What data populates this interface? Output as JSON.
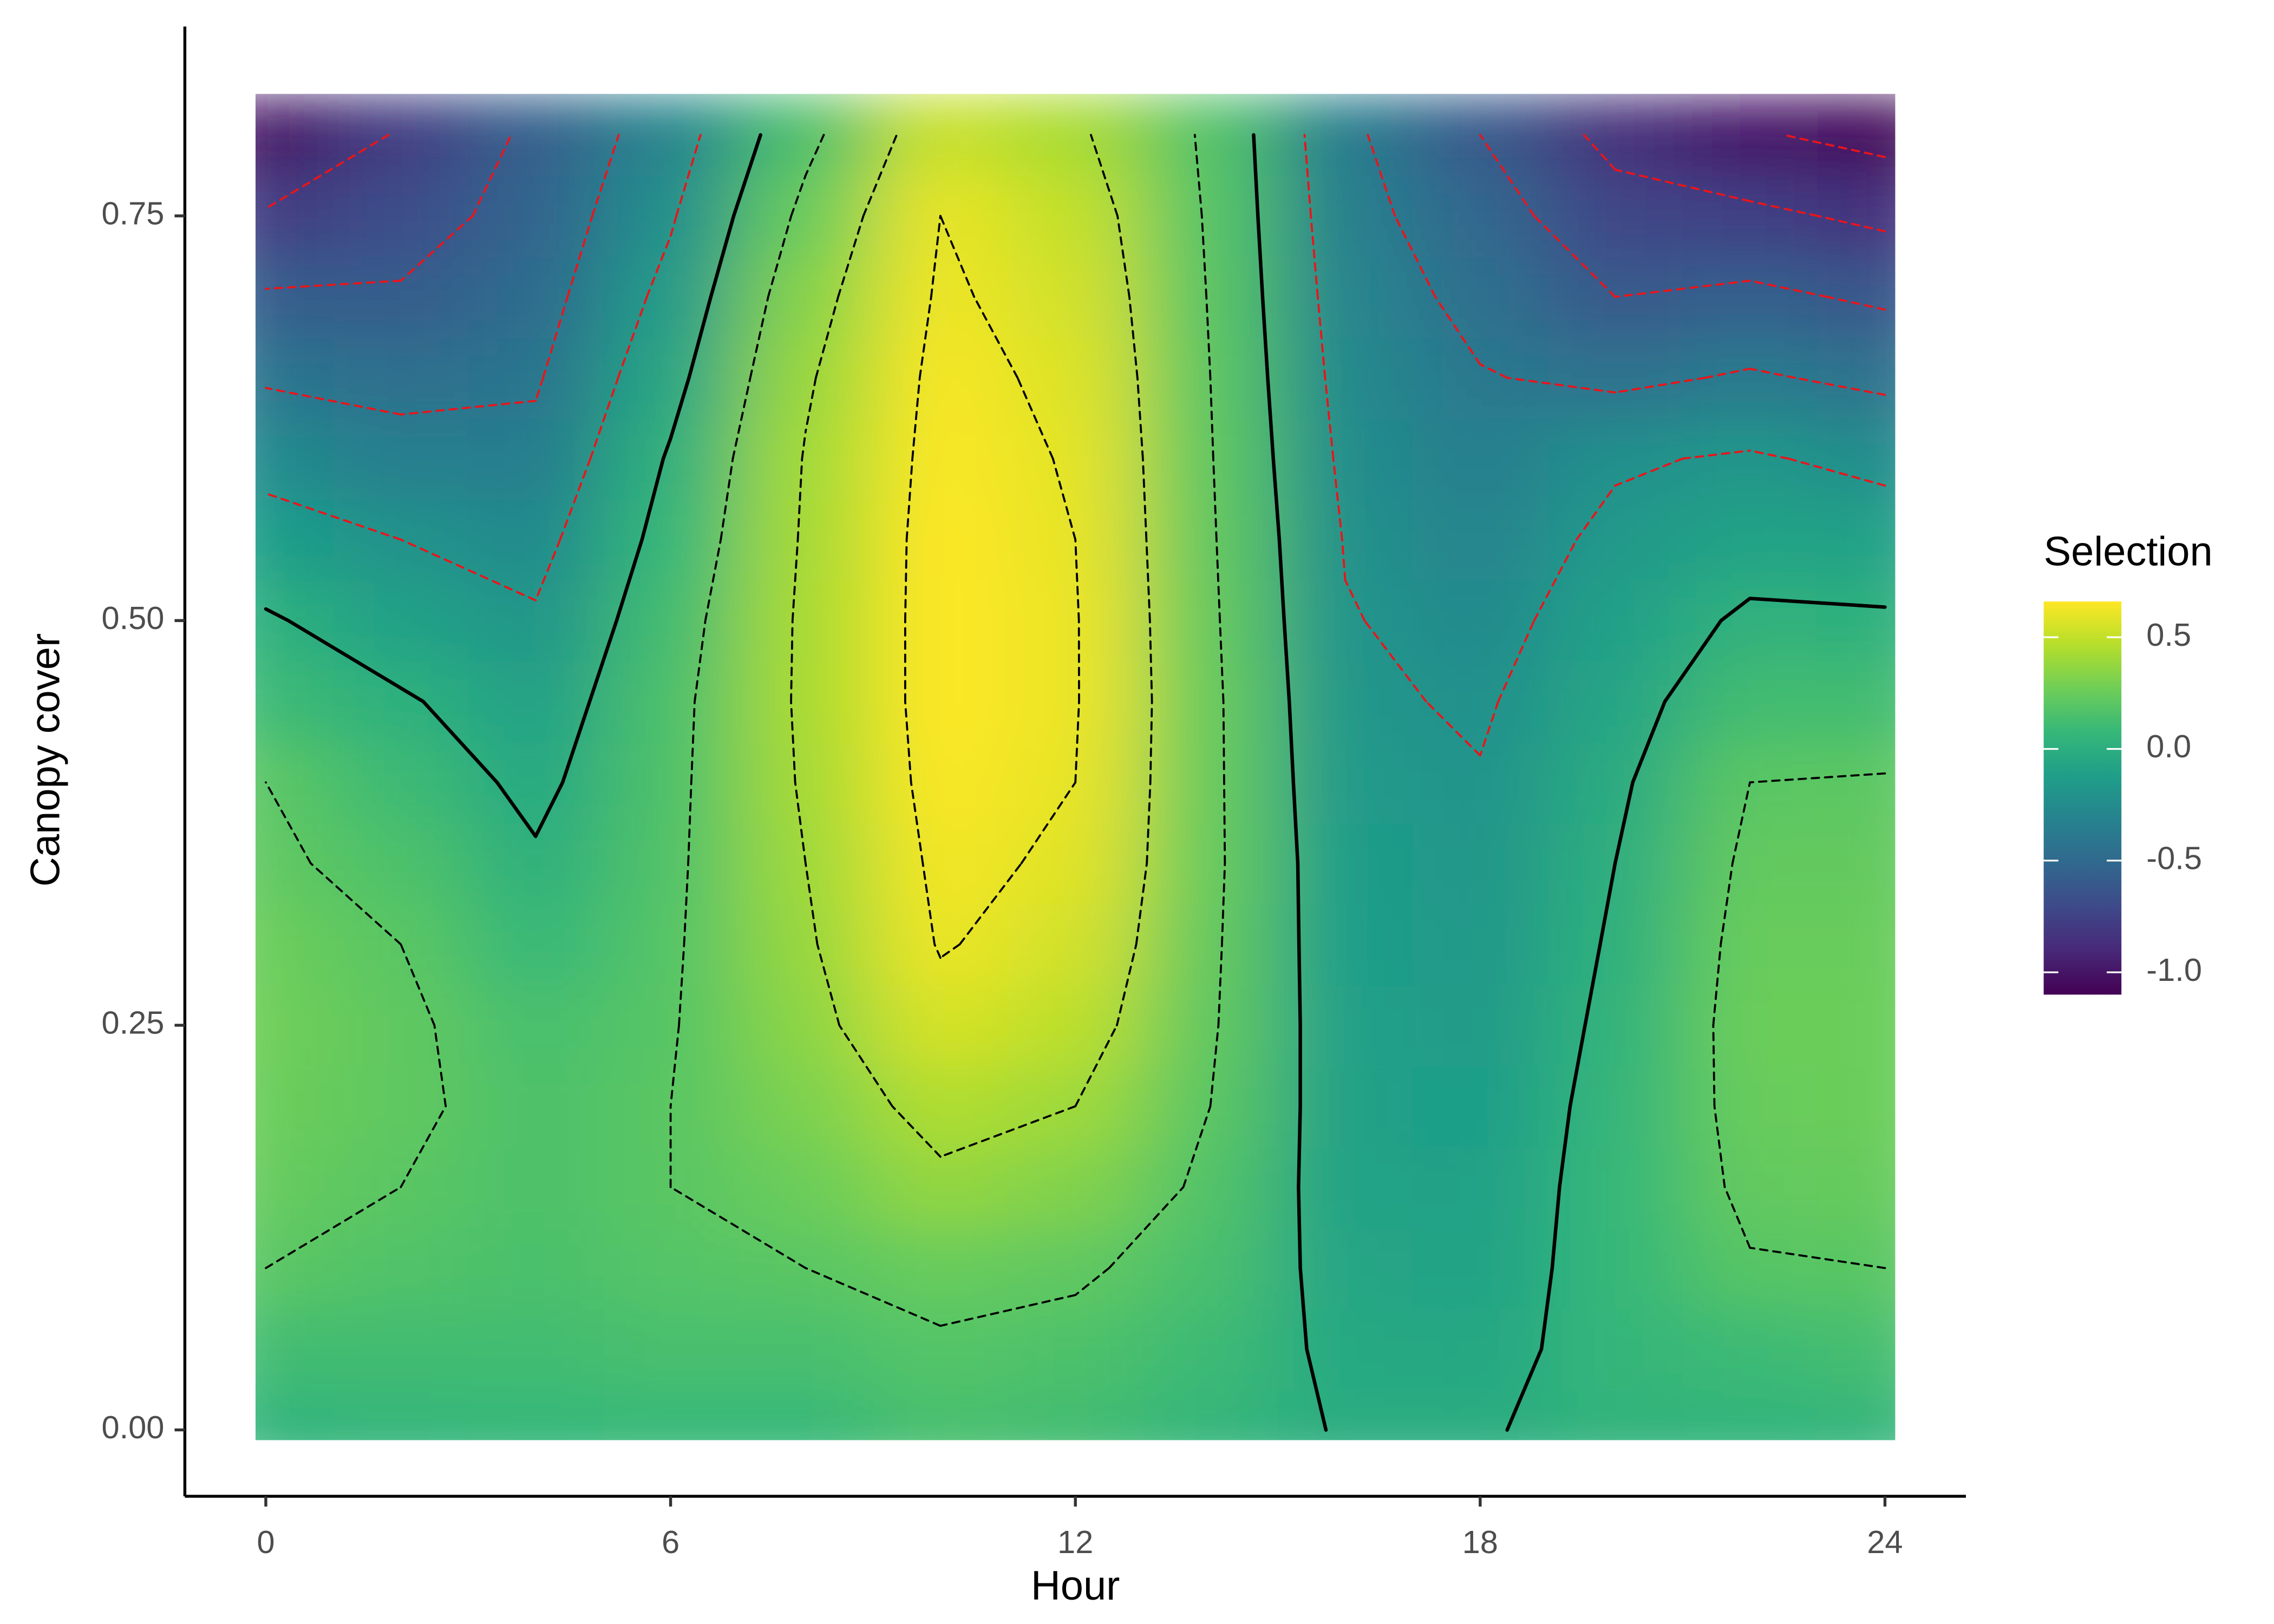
{
  "chart_data": {
    "type": "heatmap",
    "x_label": "Hour",
    "y_label": "Canopy cover",
    "legend_title": "Selection",
    "legend_position": "right",
    "x": [
      0,
      2,
      4,
      6,
      8,
      10,
      12,
      14,
      16,
      18,
      20,
      22,
      24
    ],
    "y": [
      0,
      0.05,
      0.1,
      0.15,
      0.2,
      0.25,
      0.3,
      0.35,
      0.4,
      0.45,
      0.5,
      0.55,
      0.6,
      0.65,
      0.7,
      0.75,
      0.8
    ],
    "z": [
      [
        0.05,
        0.06,
        0.07,
        0.08,
        0.08,
        0.14,
        0.12,
        0.06,
        -0.01,
        -0.01,
        0.04,
        0.05,
        0.06
      ],
      [
        0.12,
        0.12,
        0.12,
        0.14,
        0.14,
        0.18,
        0.16,
        0.1,
        -0.04,
        -0.05,
        0.06,
        0.1,
        0.13
      ],
      [
        0.2,
        0.17,
        0.15,
        0.18,
        0.2,
        0.25,
        0.22,
        0.14,
        -0.07,
        -0.08,
        0.07,
        0.19,
        0.2
      ],
      [
        0.24,
        0.2,
        0.16,
        0.2,
        0.26,
        0.37,
        0.32,
        0.17,
        -0.09,
        -0.1,
        0.07,
        0.23,
        0.24
      ],
      [
        0.26,
        0.22,
        0.16,
        0.2,
        0.31,
        0.45,
        0.4,
        0.2,
        -0.1,
        -0.12,
        0.06,
        0.25,
        0.26
      ],
      [
        0.27,
        0.22,
        0.14,
        0.19,
        0.35,
        0.55,
        0.48,
        0.22,
        -0.11,
        -0.14,
        0.04,
        0.26,
        0.26
      ],
      [
        0.26,
        0.2,
        0.08,
        0.18,
        0.38,
        0.61,
        0.54,
        0.23,
        -0.12,
        -0.16,
        0.02,
        0.25,
        0.25
      ],
      [
        0.22,
        0.16,
        0.02,
        0.17,
        0.4,
        0.63,
        0.58,
        0.24,
        -0.13,
        -0.18,
        0.0,
        0.23,
        0.23
      ],
      [
        0.2,
        0.1,
        -0.04,
        0.16,
        0.42,
        0.65,
        0.6,
        0.24,
        -0.15,
        -0.19,
        -0.03,
        0.2,
        0.21
      ],
      [
        0.1,
        0.02,
        -0.1,
        0.15,
        0.43,
        0.66,
        0.61,
        0.24,
        -0.17,
        -0.22,
        -0.07,
        0.12,
        0.12
      ],
      [
        0.02,
        -0.1,
        -0.18,
        0.12,
        0.43,
        0.66,
        0.61,
        0.23,
        -0.19,
        -0.26,
        -0.11,
        0.03,
        0.02
      ],
      [
        -0.12,
        -0.2,
        -0.26,
        0.07,
        0.42,
        0.66,
        0.6,
        0.22,
        -0.21,
        -0.3,
        -0.16,
        -0.08,
        -0.1
      ],
      [
        -0.26,
        -0.34,
        -0.35,
        0.02,
        0.41,
        0.65,
        0.59,
        0.21,
        -0.24,
        -0.34,
        -0.22,
        -0.18,
        -0.25
      ],
      [
        -0.42,
        -0.45,
        -0.42,
        -0.06,
        0.38,
        0.64,
        0.57,
        0.2,
        -0.27,
        -0.39,
        -0.44,
        -0.38,
        -0.44
      ],
      [
        -0.58,
        -0.58,
        -0.48,
        -0.14,
        0.33,
        0.62,
        0.54,
        0.19,
        -0.3,
        -0.45,
        -0.6,
        -0.56,
        -0.63
      ],
      [
        -0.78,
        -0.68,
        -0.53,
        -0.22,
        0.25,
        0.6,
        0.5,
        0.18,
        -0.33,
        -0.52,
        -0.72,
        -0.76,
        -0.84
      ],
      [
        -1.0,
        -0.78,
        -0.56,
        -0.3,
        0.15,
        0.52,
        0.43,
        0.17,
        -0.36,
        -0.6,
        -0.86,
        -0.98,
        -1.06
      ]
    ],
    "xlim": [
      -1.2,
      25.2
    ],
    "ylim": [
      -0.041,
      0.867
    ],
    "xticks": [
      0,
      6,
      12,
      18,
      24
    ],
    "yticks": [
      {
        "value": 0,
        "label": "0.00"
      },
      0.25,
      {
        "value": 0.5,
        "label": "0.50"
      },
      0.75
    ],
    "zlim": [
      -1.1,
      0.66
    ],
    "zticks": [
      {
        "value": -1,
        "label": "-1.0"
      },
      -0.5,
      {
        "value": 0,
        "label": "0.0"
      },
      0.5
    ],
    "colorscale": [
      "#440154",
      "#482878",
      "#3e4989",
      "#31688e",
      "#26828e",
      "#1f9e89",
      "#35b779",
      "#6ece58",
      "#b5de2b",
      "#fde725"
    ],
    "contours": [
      {
        "level": -1,
        "color": "#e8151b",
        "dashed": true
      },
      {
        "level": -0.8,
        "color": "#e8151b",
        "dashed": true
      },
      {
        "level": -0.6,
        "color": "#e8151b",
        "dashed": true
      },
      {
        "level": -0.4,
        "color": "#e8151b",
        "dashed": true
      },
      {
        "level": -0.2,
        "color": "#e8151b",
        "dashed": true
      },
      {
        "level": 0,
        "color": "#000000",
        "dashed": false
      },
      {
        "level": 0.2,
        "color": "#000000",
        "dashed": true
      },
      {
        "level": 0.4,
        "color": "#000000",
        "dashed": true
      },
      {
        "level": 0.6,
        "color": "#000000",
        "dashed": true
      }
    ]
  }
}
